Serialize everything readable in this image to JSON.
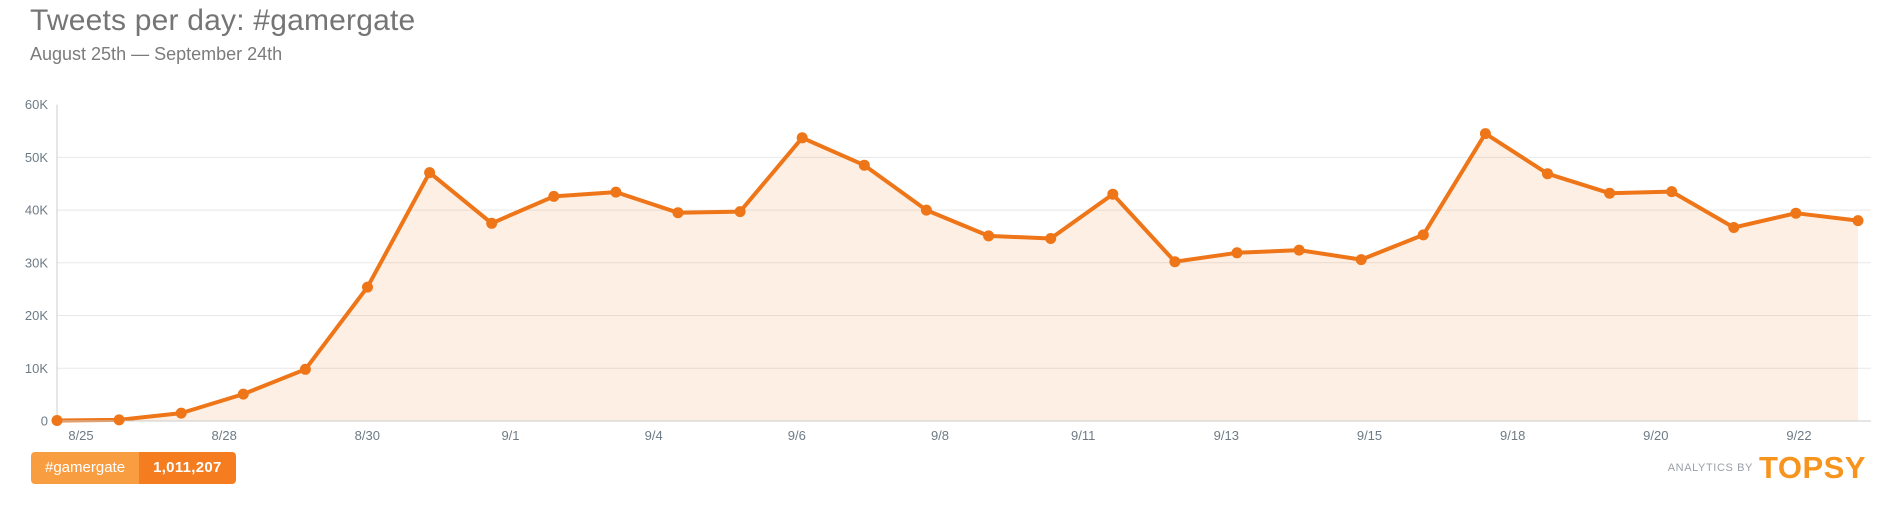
{
  "header": {
    "title": "Tweets per day: #gamergate",
    "subtitle": "August 25th — September 24th"
  },
  "chart_data": {
    "type": "area",
    "title": "Tweets per day: #gamergate",
    "x": [
      "8/25",
      "8/26",
      "8/27",
      "8/28",
      "8/29",
      "8/30",
      "8/31",
      "9/1",
      "9/2",
      "9/3",
      "9/4",
      "9/5",
      "9/6",
      "9/7",
      "9/8",
      "9/9",
      "9/10",
      "9/11",
      "9/12",
      "9/13",
      "9/14",
      "9/15",
      "9/16",
      "9/17",
      "9/18",
      "9/19",
      "9/20",
      "9/21",
      "9/22",
      "9/23"
    ],
    "series": [
      {
        "name": "#gamergate",
        "values": [
          100,
          200,
          1500,
          5100,
          9800,
          25400,
          47100,
          37500,
          42600,
          43400,
          39500,
          39700,
          53700,
          48500,
          40000,
          35100,
          34600,
          43000,
          30200,
          31900,
          32400,
          30600,
          35300,
          54500,
          46900,
          43200,
          43500,
          36700,
          39400,
          38000
        ]
      }
    ],
    "xlabel": "",
    "ylabel": "",
    "ylim": [
      0,
      60000
    ],
    "y_tick_labels": [
      "0",
      "10K",
      "20K",
      "30K",
      "40K",
      "50K",
      "60K"
    ],
    "x_tick_labels": [
      "8/25",
      "8/28",
      "8/30",
      "9/1",
      "9/4",
      "9/6",
      "9/8",
      "9/11",
      "9/13",
      "9/15",
      "9/18",
      "9/20",
      "9/22"
    ],
    "grid": true,
    "legend_position": "bottom-left"
  },
  "legend": {
    "hashtag": "#gamergate",
    "total": "1,011,207"
  },
  "footer": {
    "analytics_by": "ANALYTICS BY",
    "brand": "TOPSY"
  },
  "colors": {
    "line": "#ee7518",
    "point": "#ee7518",
    "area_fill": "rgba(240,120,28,0.12)",
    "grid": "#e8e8e8",
    "axis": "#cccccc",
    "tick_text": "#6e7b85",
    "legend_light": "#f99d41",
    "legend_dark": "#f57d20",
    "brand": "#f7941e",
    "title_text": "#757575"
  }
}
